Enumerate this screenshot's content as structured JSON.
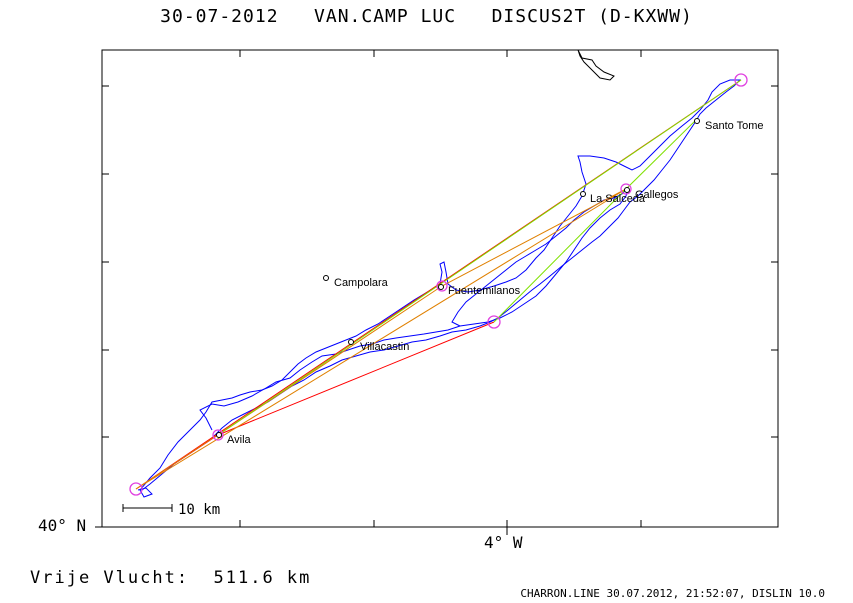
{
  "title": "30-07-2012   VAN.CAMP LUC   DISCUS2T (D-KXWW)",
  "axes": {
    "lat_label": "40° N",
    "lon_label": "4° W"
  },
  "scale_bar": {
    "label": "10 km"
  },
  "places": [
    {
      "name": "Santo Tome"
    },
    {
      "name": "Gallegos"
    },
    {
      "name": "La Salceda"
    },
    {
      "name": "Campolara"
    },
    {
      "name": "Fuentemilanos"
    },
    {
      "name": "Villacastin"
    },
    {
      "name": "Avila"
    }
  ],
  "free_flight": "Vrije Vlucht:  511.6 km",
  "footer": "CHARRON.LINE 30.07.2012, 21:52:07, DISLIN 10.0",
  "colors": {
    "track": "#0000ff",
    "task_line": "#ff0000",
    "optimized_line": "#ff8c00",
    "alt_line": "#7fe000",
    "turnpoint": "#e040e0",
    "frame": "#000000"
  }
}
